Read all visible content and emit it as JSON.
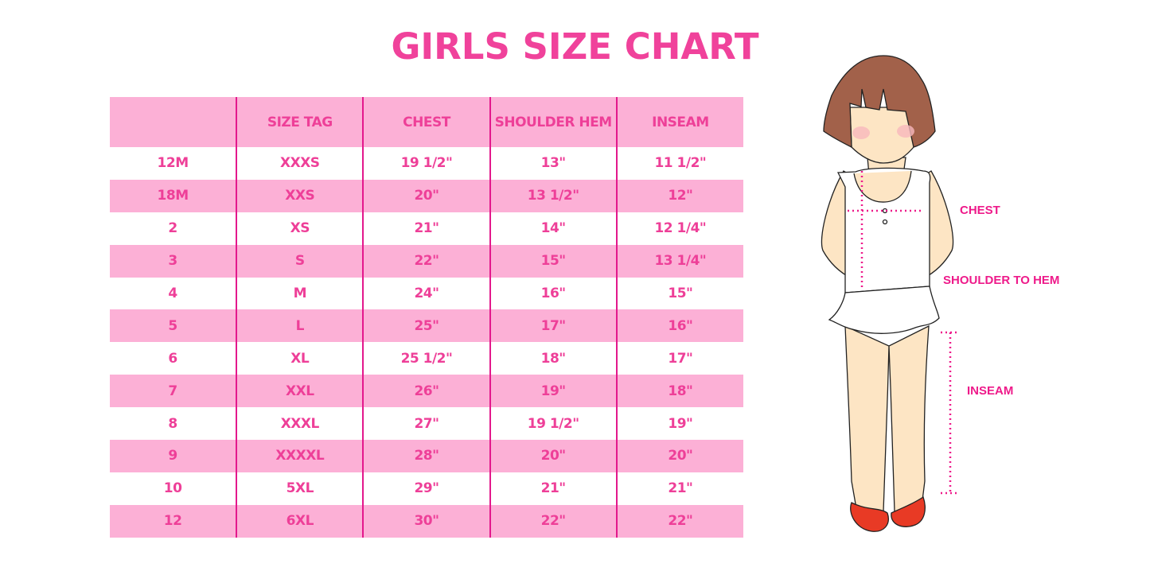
{
  "title": "GIRLS SIZE CHART",
  "table": {
    "headers": [
      "",
      "SIZE TAG",
      "CHEST",
      "SHOULDER HEM",
      "INSEAM"
    ],
    "rows": [
      [
        "12M",
        "XXXS",
        "19 1/2\"",
        "13\"",
        "11 1/2\""
      ],
      [
        "18M",
        "XXS",
        "20\"",
        "13 1/2\"",
        "12\""
      ],
      [
        "2",
        "XS",
        "21\"",
        "14\"",
        "12 1/4\""
      ],
      [
        "3",
        "S",
        "22\"",
        "15\"",
        "13 1/4\""
      ],
      [
        "4",
        "M",
        "24\"",
        "16\"",
        "15\""
      ],
      [
        "5",
        "L",
        "25\"",
        "17\"",
        "16\""
      ],
      [
        "6",
        "XL",
        "25 1/2\"",
        "18\"",
        "17\""
      ],
      [
        "7",
        "XXL",
        "26\"",
        "19\"",
        "18\""
      ],
      [
        "8",
        "XXXL",
        "27\"",
        "19 1/2\"",
        "19\""
      ],
      [
        "9",
        "XXXXL",
        "28\"",
        "20\"",
        "20\""
      ],
      [
        "10",
        "5XL",
        "29\"",
        "21\"",
        "21\""
      ],
      [
        "12",
        "6XL",
        "30\"",
        "22\"",
        "22\""
      ]
    ]
  },
  "figure": {
    "labels": {
      "chest": "CHEST",
      "shoulder_to_hem": "SHOULDER TO HEM",
      "inseam": "INSEAM"
    }
  },
  "colors": {
    "accent": "#ee3f98",
    "row_pink": "#fcb0d6",
    "divider": "#e3188c",
    "measure_line": "#ee1a8a"
  }
}
